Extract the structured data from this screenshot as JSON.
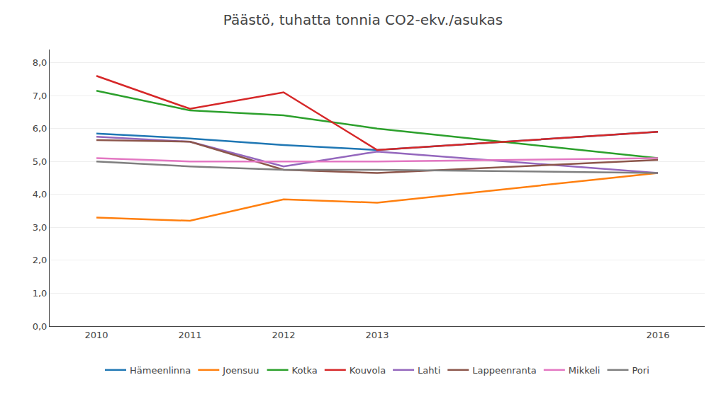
{
  "chart_data": {
    "type": "line",
    "title": "Päästö, tuhatta tonnia CO2-ekv./asukas",
    "x": [
      2010,
      2011,
      2012,
      2013,
      2016
    ],
    "series": [
      {
        "name": "Hämeenlinna",
        "values": [
          5.85,
          5.7,
          5.5,
          5.35,
          5.9
        ]
      },
      {
        "name": "Joensuu",
        "values": [
          3.3,
          3.2,
          3.85,
          3.75,
          4.65
        ]
      },
      {
        "name": "Kotka",
        "values": [
          7.15,
          6.55,
          6.4,
          6.0,
          5.1
        ]
      },
      {
        "name": "Kouvola",
        "values": [
          7.6,
          6.6,
          7.1,
          5.35,
          5.9
        ]
      },
      {
        "name": "Lahti",
        "values": [
          5.75,
          5.6,
          4.85,
          5.3,
          4.65
        ]
      },
      {
        "name": "Lappeenranta",
        "values": [
          5.65,
          5.6,
          4.75,
          4.65,
          5.05
        ]
      },
      {
        "name": "Mikkeli",
        "values": [
          5.1,
          5.0,
          5.0,
          5.0,
          5.1
        ]
      },
      {
        "name": "Pori",
        "values": [
          5.0,
          4.85,
          4.75,
          4.75,
          4.65
        ]
      }
    ],
    "xlim": [
      2009.5,
      2016.5
    ],
    "xticks": [
      2010,
      2011,
      2012,
      2013,
      2016
    ],
    "ylim": [
      0.0,
      8.4
    ],
    "yticks": [
      {
        "value": 0.0,
        "label": "0,0"
      },
      {
        "value": 1.0,
        "label": "1,0"
      },
      {
        "value": 2.0,
        "label": "2,0"
      },
      {
        "value": 3.0,
        "label": "3,0"
      },
      {
        "value": 4.0,
        "label": "4,0"
      },
      {
        "value": 5.0,
        "label": "5,0"
      },
      {
        "value": 6.0,
        "label": "6,0"
      },
      {
        "value": 7.0,
        "label": "7,0"
      },
      {
        "value": 8.0,
        "label": "8,0"
      }
    ],
    "grid": "y",
    "legend": "bottom"
  }
}
